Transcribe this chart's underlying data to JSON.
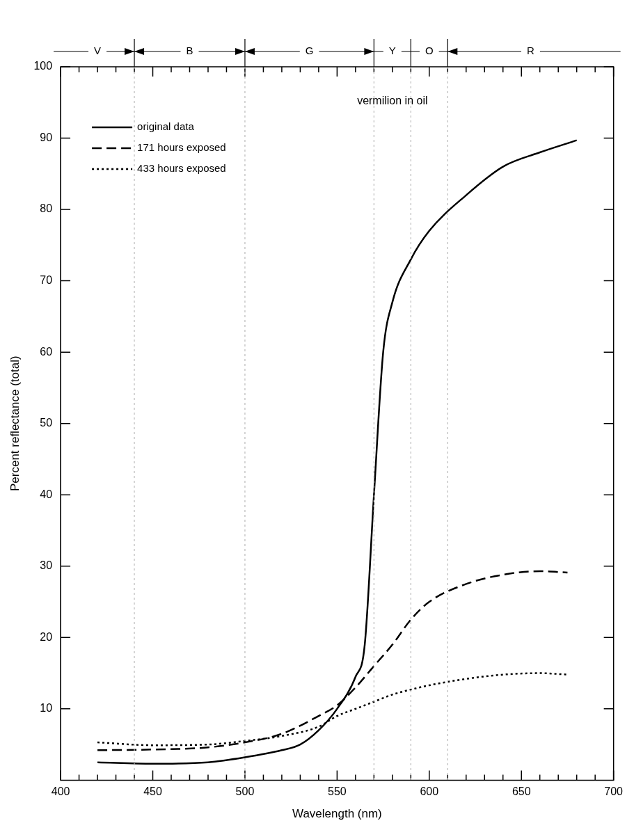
{
  "chart_data": {
    "type": "line",
    "xlabel": "Wavelength (nm)",
    "ylabel": "Percent reflectance (total)",
    "annotations": [
      "V",
      "B",
      "G",
      "Y",
      "O",
      "R",
      "vermilion in oil"
    ],
    "xlim": [
      400,
      700
    ],
    "xticks": [
      400,
      {
        "value": 410,
        "label": null
      },
      {
        "value": 420,
        "label": null
      },
      {
        "value": 430,
        "label": null
      },
      {
        "value": 440,
        "label": null
      },
      450,
      {
        "value": 460,
        "label": null
      },
      {
        "value": 470,
        "label": null
      },
      {
        "value": 480,
        "label": null
      },
      {
        "value": 490,
        "label": null
      },
      500,
      {
        "value": 510,
        "label": null
      },
      {
        "value": 520,
        "label": null
      },
      {
        "value": 530,
        "label": null
      },
      {
        "value": 540,
        "label": null
      },
      550,
      {
        "value": 560,
        "label": null
      },
      {
        "value": 570,
        "label": null
      },
      {
        "value": 580,
        "label": null
      },
      {
        "value": 590,
        "label": null
      },
      600,
      {
        "value": 610,
        "label": null
      },
      {
        "value": 620,
        "label": null
      },
      {
        "value": 630,
        "label": null
      },
      {
        "value": 640,
        "label": null
      },
      650,
      {
        "value": 660,
        "label": null
      },
      {
        "value": 670,
        "label": null
      },
      {
        "value": 680,
        "label": null
      },
      {
        "value": 690,
        "label": null
      },
      700
    ],
    "ylim": [
      0,
      100
    ],
    "yticks": [
      10,
      20,
      30,
      40,
      50,
      60,
      70,
      80,
      90,
      100
    ],
    "grid": false,
    "legend": "top left",
    "marker": "none",
    "ref_lines": [
      {
        "axis": "x",
        "value": 440,
        "color": "#bbbbbb",
        "line_style": "dotted"
      },
      {
        "axis": "x",
        "value": 500,
        "color": "#bbbbbb",
        "line_style": "dotted"
      },
      {
        "axis": "x",
        "value": 570,
        "color": "#bbbbbb",
        "line_style": "dotted"
      },
      {
        "axis": "x",
        "value": 590,
        "color": "#bbbbbb",
        "line_style": "dotted"
      },
      {
        "axis": "x",
        "value": 610,
        "color": "#bbbbbb",
        "line_style": "dotted"
      }
    ],
    "series": [
      {
        "name": "original data",
        "color": "#000000",
        "line_style": "solid",
        "x": [
          420,
          450,
          480,
          500,
          520,
          530,
          540,
          550,
          560,
          565,
          570,
          575,
          580,
          590,
          600,
          620,
          640,
          660,
          680
        ],
        "values": [
          2.5,
          2.3,
          2.5,
          3.2,
          4.2,
          5,
          7,
          10,
          14.5,
          19,
          40,
          60,
          67,
          73,
          77,
          82,
          86,
          88,
          89.7
        ]
      },
      {
        "name": "171 hours exposed",
        "color": "#000000",
        "line_style": "dashed",
        "x": [
          420,
          450,
          480,
          500,
          520,
          540,
          550,
          560,
          570,
          580,
          590,
          600,
          620,
          640,
          660,
          675
        ],
        "values": [
          4.2,
          4.3,
          4.6,
          5.3,
          6.5,
          9,
          10.5,
          13,
          16,
          19,
          22.5,
          25,
          27.5,
          28.8,
          29.3,
          29.1
        ]
      },
      {
        "name": "433 hours exposed",
        "color": "#000000",
        "line_style": "dotted",
        "x": [
          420,
          450,
          480,
          500,
          520,
          540,
          550,
          560,
          570,
          580,
          590,
          600,
          620,
          640,
          660,
          675
        ],
        "values": [
          5.3,
          4.9,
          5,
          5.5,
          6.2,
          7.5,
          9,
          10,
          11,
          12,
          12.7,
          13.3,
          14.2,
          14.8,
          15,
          14.8
        ]
      }
    ]
  }
}
